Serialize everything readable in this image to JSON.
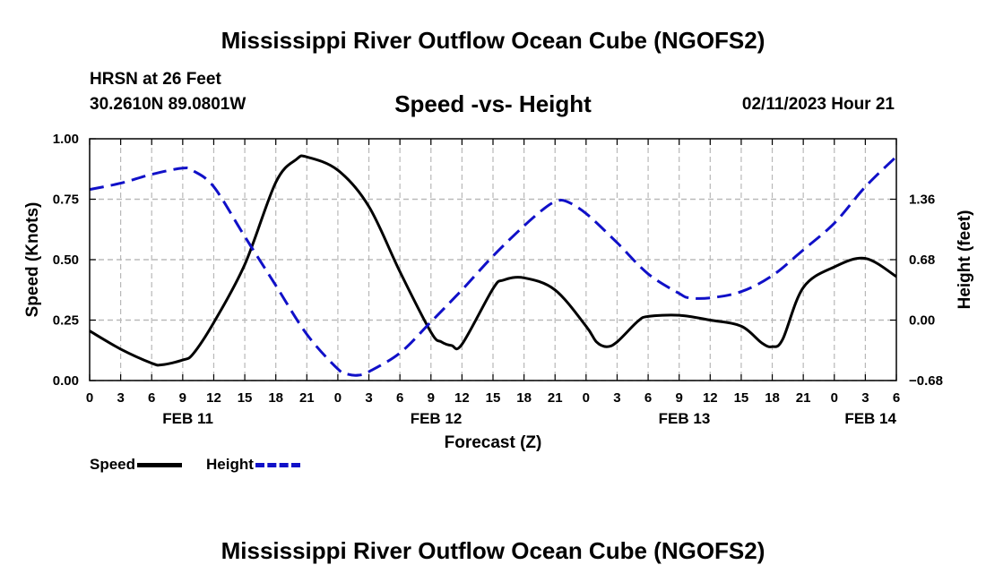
{
  "header": {
    "main_title": "Mississippi River Outflow Ocean Cube (NGOFS2)",
    "station": "HRSN at 26 Feet",
    "coords": "30.2610N  89.0801W",
    "chart_title": "Speed -vs- Height",
    "datetime": "02/11/2023 Hour 21"
  },
  "footer": {
    "title": "Mississippi River Outflow Ocean Cube (NGOFS2)"
  },
  "legend": {
    "speed_label": "Speed",
    "height_label": "Height"
  },
  "colors": {
    "speed": "#000000",
    "height": "#1010c8",
    "grid": "#b8b8b8"
  },
  "chart_data": {
    "type": "line",
    "title": "Speed -vs- Height",
    "xlabel": "Forecast (Z)",
    "ylabel": "Speed (Knots)",
    "y2label": "Height (feet)",
    "xlim": [
      0,
      78
    ],
    "ylim": [
      0,
      1
    ],
    "y2lim": [
      -0.68,
      2.04
    ],
    "x_unit": "hours since 00Z Feb 11",
    "x_ticks": [
      0,
      3,
      6,
      9,
      12,
      15,
      18,
      21,
      24,
      27,
      30,
      33,
      36,
      39,
      42,
      45,
      48,
      51,
      54,
      57,
      60,
      63,
      66,
      69,
      72,
      75,
      78
    ],
    "x_tick_labels": [
      "0",
      "3",
      "6",
      "9",
      "12",
      "15",
      "18",
      "21",
      "0",
      "3",
      "6",
      "9",
      "12",
      "15",
      "18",
      "21",
      "0",
      "3",
      "6",
      "9",
      "12",
      "15",
      "18",
      "21",
      "0",
      "3",
      "6"
    ],
    "date_labels": [
      {
        "x": 9.5,
        "label": "FEB 11"
      },
      {
        "x": 33.5,
        "label": "FEB 12"
      },
      {
        "x": 57.5,
        "label": "FEB 13"
      },
      {
        "x": 75.5,
        "label": "FEB 14"
      }
    ],
    "y_ticks": [
      0,
      0.25,
      0.5,
      0.75,
      1.0
    ],
    "y_tick_labels": [
      "0.00",
      "0.25",
      "0.50",
      "0.75",
      "1.00"
    ],
    "y2_ticks": [
      -0.68,
      0.0,
      0.68,
      1.36
    ],
    "y2_tick_labels": [
      "−0.68",
      "0.00",
      "0.68",
      "1.36"
    ],
    "grid": true,
    "series": [
      {
        "name": "Speed",
        "axis": "left",
        "style": "solid",
        "points": [
          [
            0,
            0.205
          ],
          [
            3,
            0.13
          ],
          [
            6,
            0.072
          ],
          [
            7,
            0.065
          ],
          [
            9,
            0.085
          ],
          [
            10,
            0.11
          ],
          [
            12,
            0.24
          ],
          [
            15,
            0.48
          ],
          [
            18,
            0.82
          ],
          [
            20,
            0.915
          ],
          [
            21,
            0.925
          ],
          [
            24,
            0.87
          ],
          [
            27,
            0.72
          ],
          [
            30,
            0.45
          ],
          [
            33,
            0.2
          ],
          [
            34,
            0.16
          ],
          [
            35,
            0.145
          ],
          [
            36,
            0.15
          ],
          [
            39,
            0.38
          ],
          [
            40,
            0.415
          ],
          [
            42,
            0.425
          ],
          [
            45,
            0.375
          ],
          [
            48,
            0.225
          ],
          [
            49,
            0.16
          ],
          [
            50,
            0.14
          ],
          [
            51,
            0.16
          ],
          [
            53,
            0.245
          ],
          [
            54,
            0.265
          ],
          [
            57,
            0.27
          ],
          [
            60,
            0.25
          ],
          [
            63,
            0.225
          ],
          [
            65,
            0.155
          ],
          [
            66,
            0.14
          ],
          [
            67,
            0.17
          ],
          [
            69,
            0.385
          ],
          [
            72,
            0.47
          ],
          [
            75,
            0.505
          ],
          [
            78,
            0.43
          ]
        ]
      },
      {
        "name": "Height",
        "axis": "right",
        "style": "dashed",
        "points": [
          [
            0,
            1.47
          ],
          [
            3,
            1.54
          ],
          [
            6,
            1.64
          ],
          [
            9,
            1.71
          ],
          [
            10,
            1.68
          ],
          [
            12,
            1.5
          ],
          [
            15,
            0.94
          ],
          [
            18,
            0.39
          ],
          [
            21,
            -0.16
          ],
          [
            24,
            -0.55
          ],
          [
            25,
            -0.61
          ],
          [
            26,
            -0.62
          ],
          [
            27,
            -0.58
          ],
          [
            30,
            -0.37
          ],
          [
            33,
            -0.02
          ],
          [
            36,
            0.34
          ],
          [
            39,
            0.72
          ],
          [
            42,
            1.06
          ],
          [
            44,
            1.26
          ],
          [
            45,
            1.33
          ],
          [
            46,
            1.34
          ],
          [
            48,
            1.2
          ],
          [
            51,
            0.87
          ],
          [
            54,
            0.52
          ],
          [
            57,
            0.3
          ],
          [
            58,
            0.25
          ],
          [
            60,
            0.25
          ],
          [
            63,
            0.32
          ],
          [
            66,
            0.5
          ],
          [
            69,
            0.79
          ],
          [
            72,
            1.09
          ],
          [
            75,
            1.5
          ],
          [
            78,
            1.84
          ]
        ]
      }
    ]
  }
}
